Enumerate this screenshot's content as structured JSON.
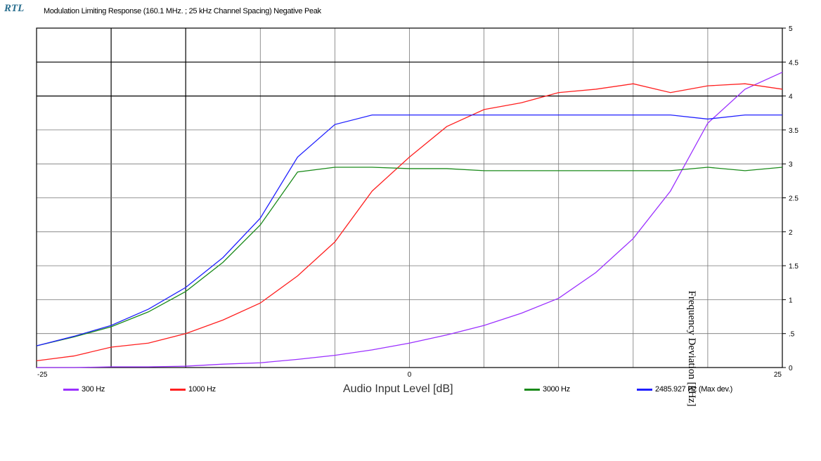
{
  "logo_text": "RTL",
  "chart_data": {
    "type": "line",
    "title": "Modulation Limiting Response (160.1 MHz. ; 25 kHz Channel Spacing) Negative Peak",
    "xlabel": "Audio Input Level [dB]",
    "ylabel": "Frequency Deviation [kHz]",
    "xlim": [
      -25,
      25
    ],
    "ylim": [
      0,
      5
    ],
    "x_ticks": [
      "-25",
      "0",
      "25"
    ],
    "y_ticks": [
      "0",
      ".5",
      "1",
      "1.5",
      "2",
      "2.5",
      "3",
      "3.5",
      "4",
      "4.5",
      "5"
    ],
    "grid": true,
    "legend_position": "bottom",
    "x": [
      -25,
      -22.5,
      -20,
      -17.5,
      -15,
      -12.5,
      -10,
      -7.5,
      -5,
      -2.5,
      0,
      2.5,
      5,
      7.5,
      10,
      12.5,
      15,
      17.5,
      20,
      22.5,
      25
    ],
    "series": [
      {
        "name": "300 Hz",
        "color": "#9b30ff",
        "values": [
          0.0,
          0.0,
          0.01,
          0.01,
          0.02,
          0.05,
          0.07,
          0.12,
          0.18,
          0.26,
          0.36,
          0.48,
          0.62,
          0.8,
          1.02,
          1.4,
          1.9,
          2.6,
          3.6,
          4.1,
          4.35
        ]
      },
      {
        "name": "1000 Hz",
        "color": "#ff2020",
        "values": [
          0.1,
          0.17,
          0.3,
          0.36,
          0.5,
          0.7,
          0.95,
          1.35,
          1.85,
          2.6,
          3.1,
          3.55,
          3.8,
          3.9,
          4.05,
          4.1,
          4.18,
          4.05,
          4.15,
          4.18,
          4.1
        ]
      },
      {
        "name": "3000 Hz",
        "color": "#1a8a1a",
        "values": [
          0.32,
          0.45,
          0.6,
          0.82,
          1.12,
          1.55,
          2.1,
          2.88,
          2.95,
          2.95,
          2.93,
          2.93,
          2.9,
          2.9,
          2.9,
          2.9,
          2.9,
          2.9,
          2.95,
          2.9,
          2.95
        ]
      },
      {
        "name": "2485.927 Hz (Max dev.)",
        "color": "#2020ff",
        "values": [
          0.32,
          0.46,
          0.62,
          0.86,
          1.18,
          1.62,
          2.2,
          3.1,
          3.58,
          3.72,
          3.72,
          3.72,
          3.72,
          3.72,
          3.72,
          3.72,
          3.72,
          3.72,
          3.66,
          3.72,
          3.72
        ]
      }
    ]
  }
}
